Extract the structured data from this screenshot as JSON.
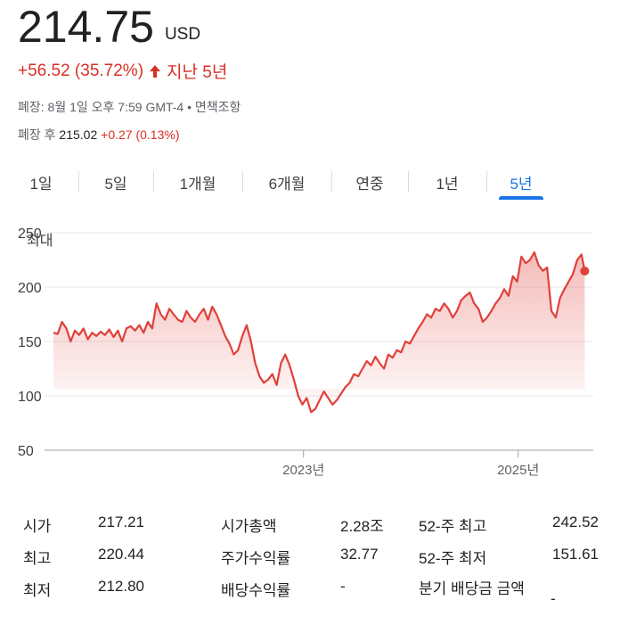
{
  "quote": {
    "price": "214.75",
    "currency": "USD",
    "change": "+56.52 (35.72%)",
    "change_period": "지난 5년",
    "closed_label": "폐장: 8월 1일 오후 7:59 GMT-4",
    "disclaimer_sep": " • ",
    "disclaimer": "면책조항",
    "after_hours_label": "폐장 후",
    "after_hours_price": "215.02",
    "after_hours_change": "+0.27 (0.13%)"
  },
  "tabs": [
    {
      "label": "1일",
      "active": false
    },
    {
      "label": "5일",
      "active": false
    },
    {
      "label": "1개월",
      "active": false
    },
    {
      "label": "6개월",
      "active": false
    },
    {
      "label": "연중",
      "active": false
    },
    {
      "label": "1년",
      "active": false
    },
    {
      "label": "5년",
      "active": true
    }
  ],
  "colors": {
    "line": "#e0403a",
    "positive": "#d93025",
    "accent": "#1a73e8"
  },
  "chart_data": {
    "type": "area",
    "ylim": [
      50,
      250
    ],
    "yticks": [
      "250",
      "200",
      "150",
      "100",
      "50"
    ],
    "xticks": [
      {
        "label": "2023년",
        "x": 2023.0
      },
      {
        "label": "2025년",
        "x": 2025.0
      }
    ],
    "xlim": [
      2020.67,
      2025.65
    ],
    "max_label": "최대",
    "grid": true,
    "last_point_marker": true,
    "series": [
      {
        "x": [
          2020.67,
          2020.71,
          2020.75,
          2020.79,
          2020.83,
          2020.87,
          2020.91,
          2020.95,
          2020.99,
          2021.03,
          2021.07,
          2021.11,
          2021.15,
          2021.19,
          2021.23,
          2021.27,
          2021.31,
          2021.35,
          2021.39,
          2021.43,
          2021.47,
          2021.51,
          2021.55,
          2021.59,
          2021.63,
          2021.67,
          2021.71,
          2021.75,
          2021.79,
          2021.83,
          2021.87,
          2021.91,
          2021.95,
          2021.99,
          2022.03,
          2022.07,
          2022.11,
          2022.15,
          2022.19,
          2022.23,
          2022.27,
          2022.31,
          2022.35,
          2022.39,
          2022.43,
          2022.47,
          2022.51,
          2022.55,
          2022.59,
          2022.63,
          2022.67,
          2022.71,
          2022.75,
          2022.79,
          2022.83,
          2022.87,
          2022.91,
          2022.95,
          2022.99,
          2023.03,
          2023.07,
          2023.11,
          2023.15,
          2023.19,
          2023.23,
          2023.27,
          2023.31,
          2023.35,
          2023.39,
          2023.43,
          2023.47,
          2023.51,
          2023.55,
          2023.59,
          2023.63,
          2023.67,
          2023.71,
          2023.75,
          2023.79,
          2023.83,
          2023.87,
          2023.91,
          2023.95,
          2023.99,
          2024.03,
          2024.07,
          2024.11,
          2024.15,
          2024.19,
          2024.23,
          2024.27,
          2024.31,
          2024.35,
          2024.39,
          2024.43,
          2024.47,
          2024.51,
          2024.55,
          2024.59,
          2024.63,
          2024.67,
          2024.71,
          2024.75,
          2024.79,
          2024.83,
          2024.87,
          2024.91,
          2024.95,
          2024.99,
          2025.03,
          2025.07,
          2025.11,
          2025.15,
          2025.19,
          2025.23,
          2025.27,
          2025.31,
          2025.35,
          2025.39,
          2025.43,
          2025.47,
          2025.51,
          2025.55,
          2025.59,
          2025.62
        ],
        "y": [
          158,
          157,
          168,
          162,
          150,
          160,
          156,
          162,
          152,
          158,
          155,
          159,
          156,
          161,
          154,
          160,
          150,
          162,
          164,
          160,
          165,
          158,
          168,
          162,
          185,
          175,
          170,
          180,
          175,
          170,
          168,
          178,
          172,
          168,
          175,
          180,
          170,
          182,
          175,
          165,
          155,
          148,
          138,
          142,
          155,
          165,
          150,
          130,
          118,
          112,
          115,
          120,
          110,
          130,
          138,
          128,
          115,
          100,
          92,
          98,
          85,
          88,
          96,
          104,
          98,
          92,
          96,
          102,
          108,
          112,
          120,
          118,
          125,
          132,
          128,
          136,
          130,
          125,
          138,
          135,
          142,
          140,
          150,
          148,
          155,
          162,
          168,
          175,
          172,
          180,
          178,
          185,
          180,
          172,
          178,
          188,
          192,
          195,
          185,
          180,
          168,
          172,
          178,
          185,
          190,
          198,
          192,
          210,
          205,
          228,
          222,
          225,
          232,
          220,
          215,
          218,
          178,
          172,
          190,
          198,
          205,
          212,
          225,
          230,
          214.75
        ]
      }
    ]
  },
  "stats": [
    {
      "label": "시가",
      "value": "217.21"
    },
    {
      "label": "최고",
      "value": "220.44"
    },
    {
      "label": "최저",
      "value": "212.80"
    },
    {
      "label": "시가총액",
      "value": "2.28조"
    },
    {
      "label": "주가수익률",
      "value": "32.77"
    },
    {
      "label": "배당수익률",
      "value": "-"
    },
    {
      "label": "52-주 최고",
      "value": "242.52"
    },
    {
      "label": "52-주 최저",
      "value": "151.61"
    },
    {
      "label": "분기 배당금 금액",
      "value": "-"
    }
  ]
}
